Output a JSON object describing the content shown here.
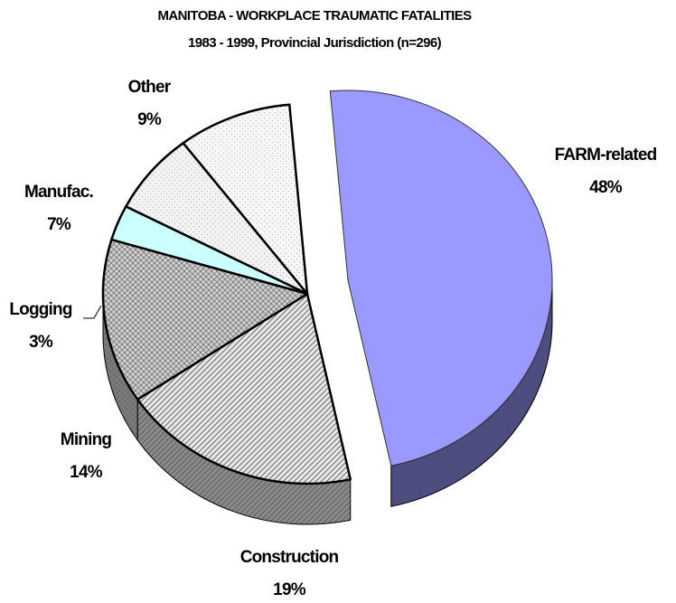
{
  "chart_data": {
    "type": "pie",
    "title": "MANITOBA - WORKPLACE TRAUMATIC FATALITIES",
    "subtitle": "1983 - 1999, Provincial Jurisdiction (n=296)",
    "categories": [
      "FARM-related",
      "Construction",
      "Mining",
      "Logging",
      "Manufac.",
      "Other"
    ],
    "values": [
      48,
      19,
      14,
      3,
      7,
      9
    ],
    "value_labels": [
      "48%",
      "19%",
      "14%",
      "3%",
      "7%",
      "9%"
    ],
    "colors": [
      "#9999ff",
      "#e6e6e6",
      "#d0d0d0",
      "#ccffff",
      "#f2f2f2",
      "#f7f7f7"
    ]
  }
}
